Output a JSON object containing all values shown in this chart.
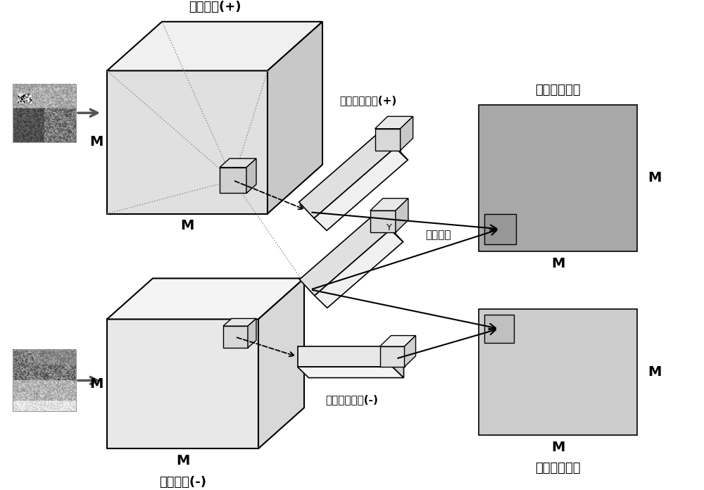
{
  "bg_color": "#ffffff",
  "top_cube_label": "局部特征(+)",
  "bot_cube_label": "局部特征(-)",
  "top_bar_label": "局部特征向量(+)",
  "bot_bar_label": "局部特征向量(-)",
  "global_label": "全局特征",
  "pos_eval_label": "正样本评价值",
  "neg_eval_label": "负样本评价值",
  "m_label": "M",
  "y_label": "Y",
  "face_front_top": "#e0e0e0",
  "face_top_top": "#f0f0f0",
  "face_side_top": "#c8c8c8",
  "face_front_bot": "#e8e8e8",
  "face_top_bot": "#f4f4f4",
  "face_side_bot": "#d8d8d8",
  "bar_face": "#e0e0e0",
  "bar_top": "#f0f0f0",
  "bar_side": "#c8c8c8",
  "bar2_face": "#e8e8e8",
  "bar2_top": "#f4f4f4",
  "bar2_side": "#d4d4d4",
  "sq_pos_color": "#a8a8a8",
  "sq_neg_color": "#cccccc",
  "sm_sq_pos_color": "#989898",
  "sm_sq_neg_color": "#c0c0c0",
  "arrow_gray": "#555555",
  "dot_line_color": "#888888"
}
